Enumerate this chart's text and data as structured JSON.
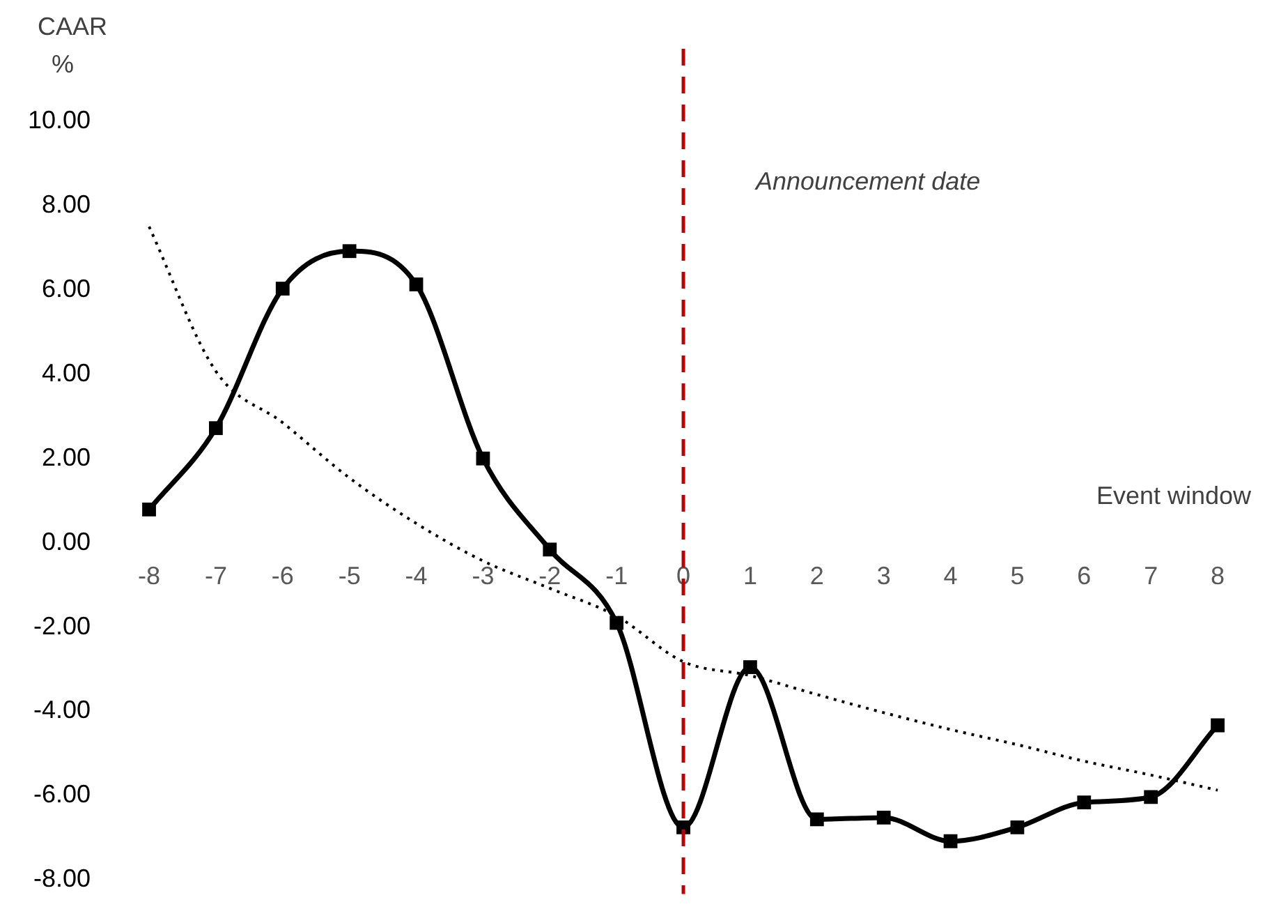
{
  "chart_data": {
    "type": "line",
    "xlabel": "Event window",
    "ylabel": "CAAR %",
    "categories": [
      "-8",
      "-7",
      "-6",
      "-5",
      "-4",
      "-3",
      "-2",
      "-1",
      "0",
      "1",
      "2",
      "3",
      "4",
      "5",
      "6",
      "7",
      "8"
    ],
    "series": [
      {
        "color": "#000000",
        "marker": "square",
        "line_style": "solid",
        "values": [
          0.79,
          2.72,
          6.03,
          6.92,
          6.13,
          2.0,
          -0.16,
          -1.9,
          -6.75,
          -2.95,
          -6.56,
          -6.52,
          -7.08,
          -6.75,
          -6.16,
          -6.03,
          -4.33
        ]
      },
      {
        "color": "#000000",
        "marker": "none",
        "line_style": "dotted",
        "values": [
          7.5,
          4.07,
          2.85,
          1.54,
          0.46,
          -0.43,
          -1.08,
          -1.74,
          -2.82,
          -3.15,
          -3.6,
          -4.03,
          -4.43,
          -4.79,
          -5.18,
          -5.51,
          -5.87
        ]
      }
    ],
    "ylim": [
      -8,
      10
    ],
    "yticks": [
      {
        "value": -8,
        "label": "-8.00"
      },
      {
        "value": -6,
        "label": "-6.00"
      },
      {
        "value": -4,
        "label": "-4.00"
      },
      {
        "value": -2,
        "label": "-2.00"
      },
      {
        "value": 0,
        "label": "0.00"
      },
      {
        "value": 2,
        "label": "2.00"
      },
      {
        "value": 4,
        "label": "4.00"
      },
      {
        "value": 6,
        "label": "6.00"
      },
      {
        "value": 8,
        "label": "8.00"
      },
      {
        "value": 10,
        "label": "10.00"
      }
    ],
    "ref_lines": [
      {
        "axis": "x",
        "value": "0",
        "label": "Announcement date",
        "color": "#c00000",
        "line_style": "dashed"
      }
    ],
    "grid": false,
    "legend": false
  }
}
